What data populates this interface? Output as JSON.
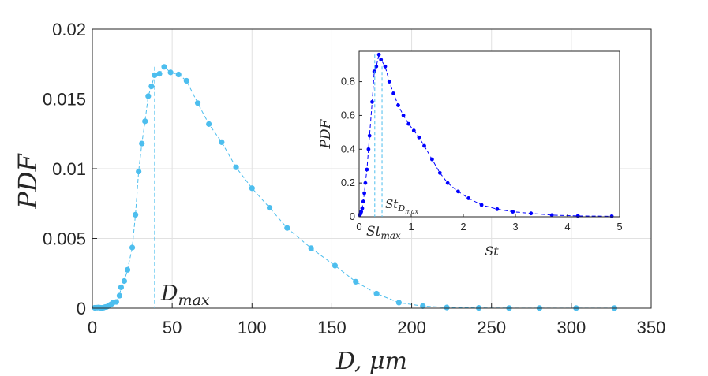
{
  "chart_data": [
    {
      "type": "line",
      "name": "main",
      "xlabel": "D, μm",
      "ylabel": "PDF",
      "xlim": [
        0,
        350
      ],
      "ylim": [
        0,
        0.02
      ],
      "xticks": [
        0,
        50,
        100,
        150,
        200,
        250,
        300,
        350
      ],
      "xtick_labels": [
        "0",
        "50",
        "100",
        "150",
        "200",
        "250",
        "300",
        "350"
      ],
      "yticks": [
        0,
        0.005,
        0.01,
        0.015,
        0.02
      ],
      "ytick_labels": [
        "0",
        "0.005",
        "0.01",
        "0.015",
        "0.02"
      ],
      "grid": true,
      "series": [
        {
          "name": "PDF",
          "color": "#4DBEEE",
          "linestyle": "dashed",
          "marker": "circle",
          "x": [
            1.5,
            3,
            4,
            5,
            6,
            7,
            8,
            9,
            10,
            11,
            12,
            13,
            15,
            17,
            18,
            20,
            22,
            25,
            27,
            29,
            31,
            33,
            35,
            37,
            39,
            42,
            45,
            49,
            54,
            59,
            66,
            73,
            81,
            90,
            100,
            111,
            122,
            137,
            152,
            165,
            178,
            192,
            207,
            222,
            242,
            261,
            280,
            303,
            327
          ],
          "y": [
            3e-05,
            4e-05,
            5e-05,
            3e-05,
            2e-05,
            4e-05,
            8e-05,
            0.0001,
            0.00015,
            0.00023,
            0.0003,
            0.0004,
            0.00045,
            0.0009,
            0.0015,
            0.00195,
            0.00275,
            0.00435,
            0.0067,
            0.0098,
            0.0118,
            0.0134,
            0.0152,
            0.0159,
            0.0167,
            0.0168,
            0.0173,
            0.0169,
            0.01675,
            0.0163,
            0.0147,
            0.0132,
            0.0119,
            0.0101,
            0.0086,
            0.0072,
            0.00575,
            0.0043,
            0.00305,
            0.0019,
            0.00105,
            0.0004,
            0.00015,
            5e-05,
            2e-05,
            1e-05,
            1e-05,
            1e-05,
            1e-05
          ]
        }
      ],
      "annotations": [
        {
          "name": "D-max-marker",
          "label": "D",
          "subscript": "max",
          "x": 39
        }
      ]
    },
    {
      "type": "line",
      "name": "inset",
      "xlabel": "St",
      "ylabel": "PDF",
      "xlim": [
        0,
        5
      ],
      "ylim": [
        0,
        0.98
      ],
      "xticks": [
        0,
        1,
        2,
        3,
        4,
        5
      ],
      "xtick_labels": [
        "0",
        "1",
        "2",
        "3",
        "4",
        "5"
      ],
      "yticks": [
        0,
        0.2,
        0.4,
        0.6,
        0.8
      ],
      "ytick_labels": [
        "0",
        "0.2",
        "0.4",
        "0.6",
        "0.8"
      ],
      "grid": false,
      "series": [
        {
          "name": "PDF",
          "color": "#0000FF",
          "linestyle": "dashed",
          "marker": "circle",
          "x": [
            0.01,
            0.02,
            0.03,
            0.04,
            0.06,
            0.08,
            0.1,
            0.12,
            0.15,
            0.18,
            0.2,
            0.25,
            0.29,
            0.33,
            0.38,
            0.42,
            0.5,
            0.58,
            0.66,
            0.75,
            0.85,
            0.95,
            1.05,
            1.15,
            1.25,
            1.4,
            1.55,
            1.7,
            1.9,
            2.1,
            2.35,
            2.65,
            2.95,
            3.3,
            3.7,
            4.2,
            4.85
          ],
          "y": [
            0.01,
            0.015,
            0.02,
            0.03,
            0.05,
            0.09,
            0.14,
            0.2,
            0.28,
            0.4,
            0.48,
            0.68,
            0.86,
            0.89,
            0.96,
            0.93,
            0.89,
            0.8,
            0.73,
            0.66,
            0.6,
            0.55,
            0.51,
            0.47,
            0.42,
            0.34,
            0.26,
            0.2,
            0.15,
            0.11,
            0.07,
            0.045,
            0.03,
            0.02,
            0.01,
            0.005,
            0.003
          ]
        }
      ],
      "annotations": [
        {
          "name": "St-max-marker",
          "label": "St",
          "subscript": "max",
          "x": 0.3
        },
        {
          "name": "St-Dmax-marker",
          "label": "St",
          "subscript": "D",
          "subsubscript": "max",
          "x": 0.44
        }
      ]
    }
  ]
}
